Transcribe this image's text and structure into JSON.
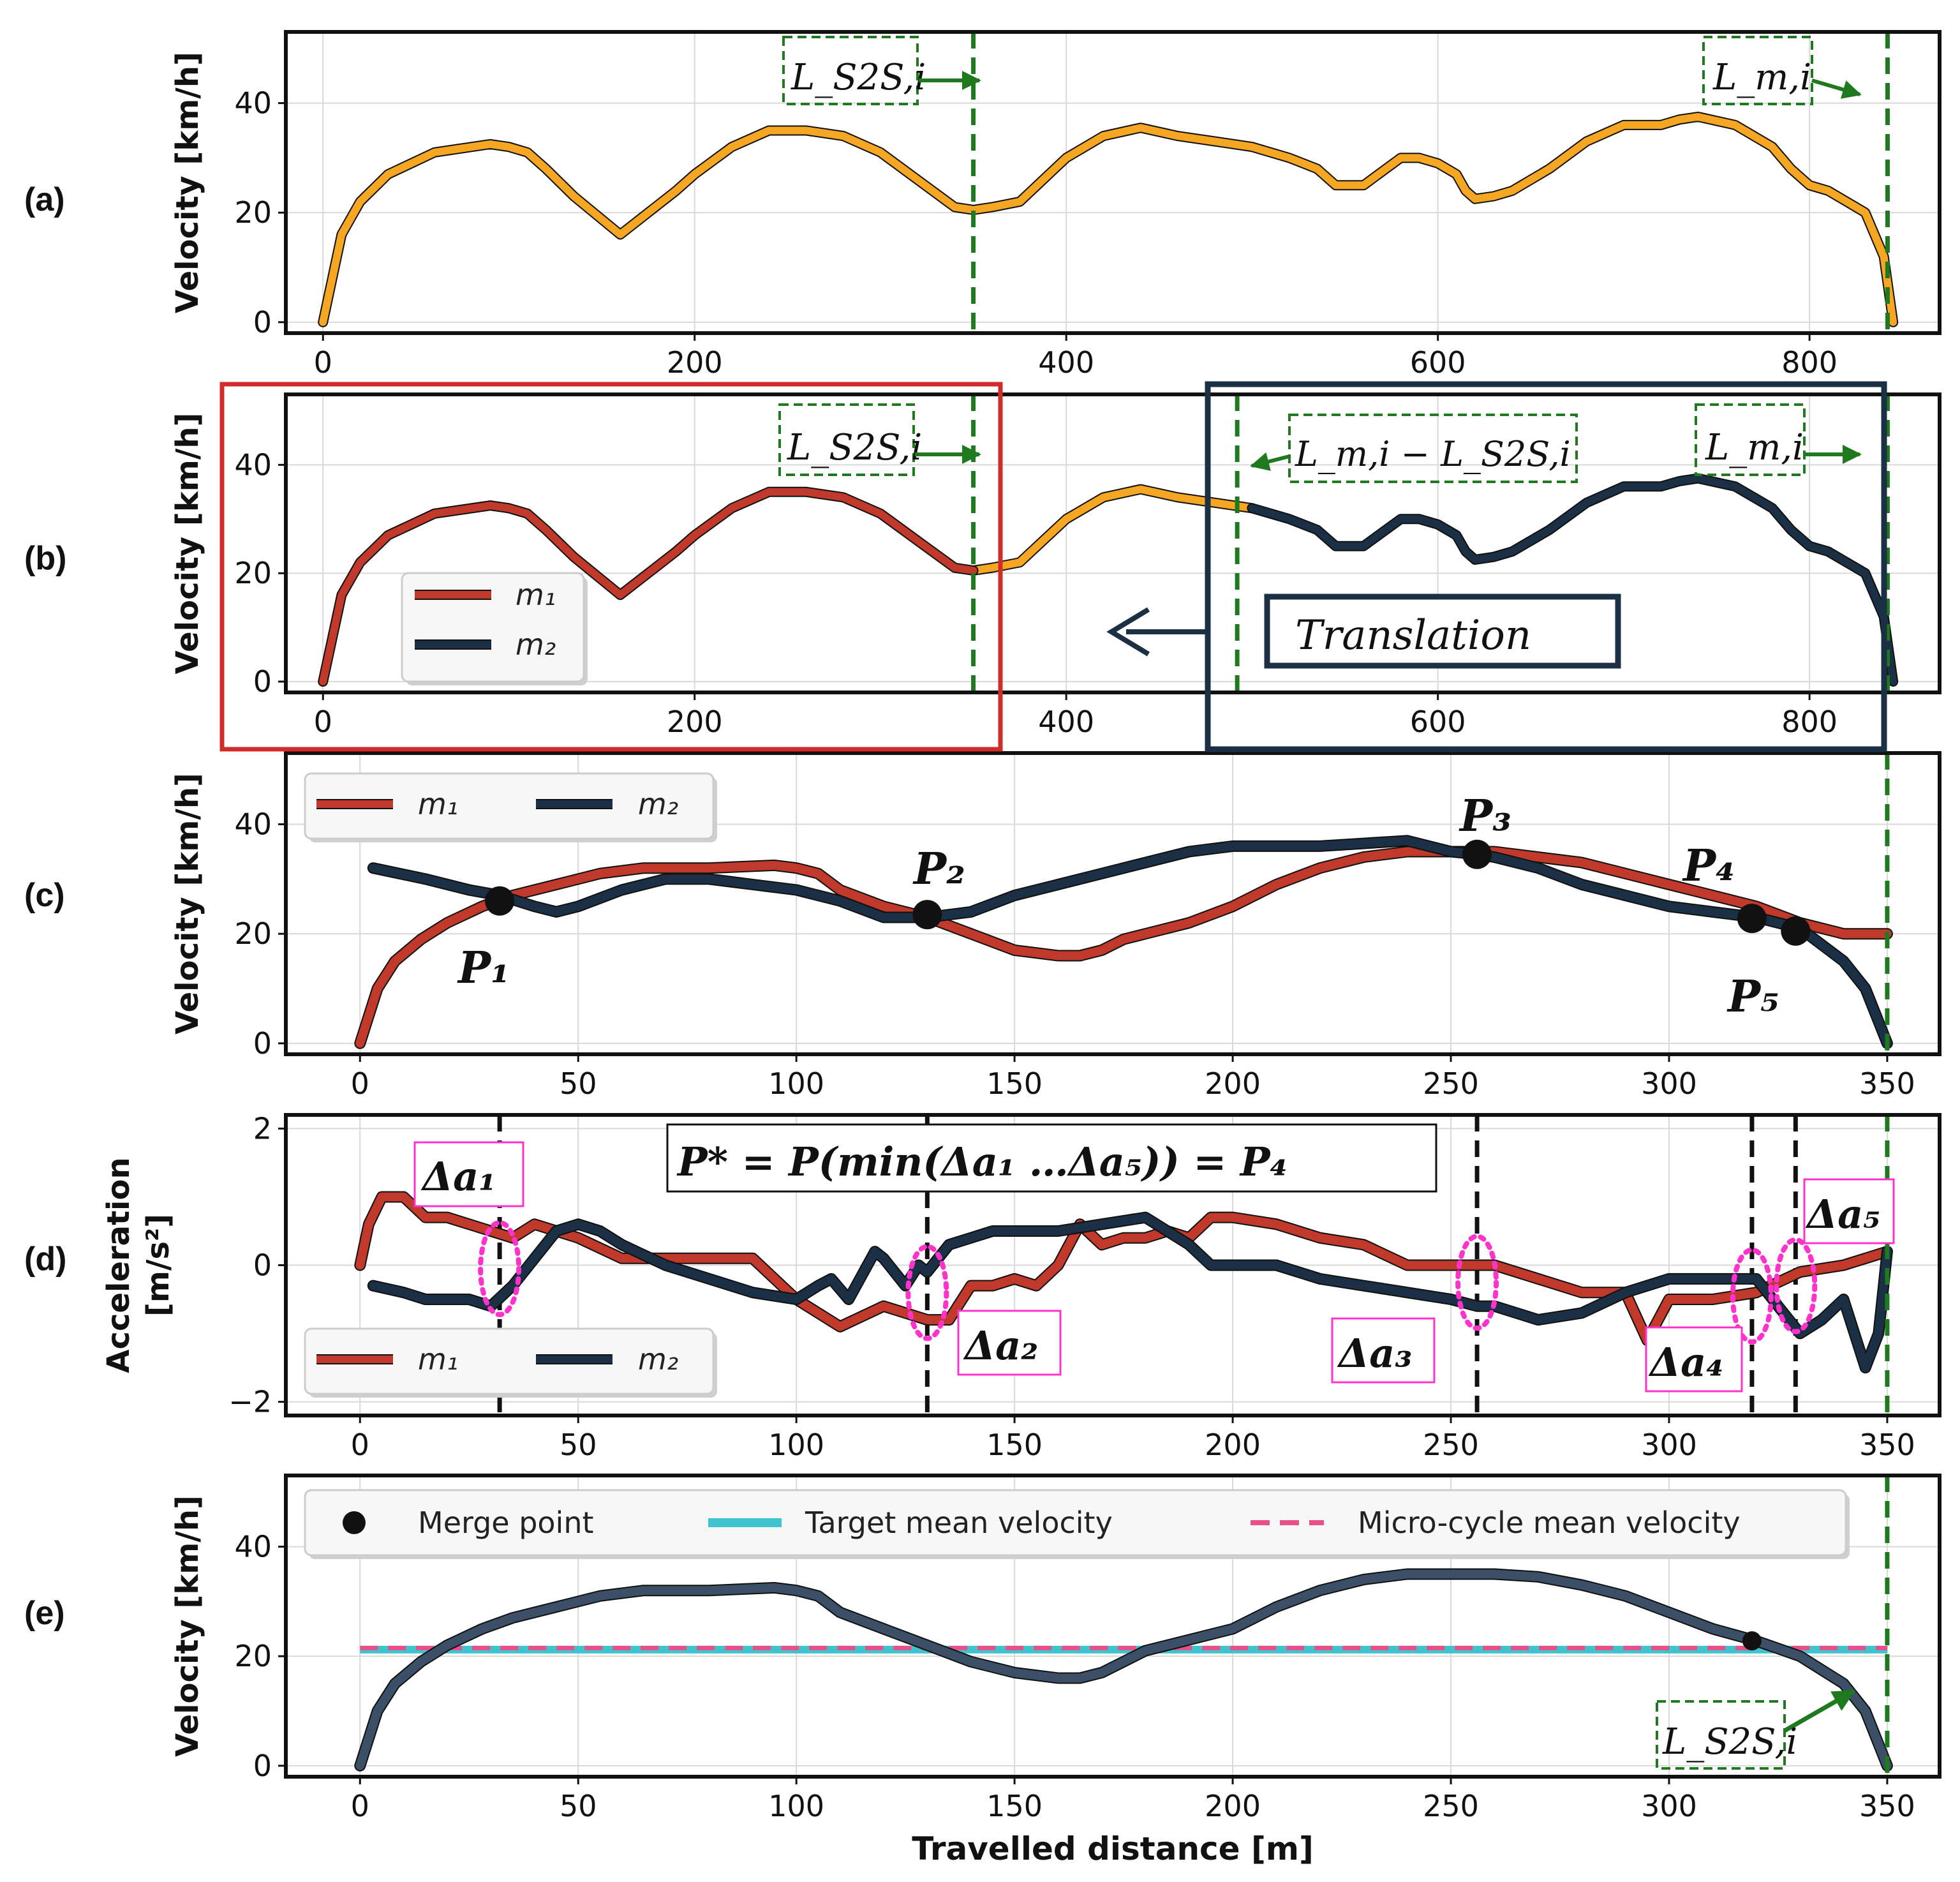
{
  "panel_labels": [
    "(a)",
    "(b)",
    "(c)",
    "(d)",
    "(e)"
  ],
  "colors": {
    "orange": "#f5a623",
    "red": "#c0392b",
    "navy": "#1b2f45",
    "green": "#1f7a1f",
    "cyan": "#3fc3cf",
    "pink": "#e8508a",
    "magenta": "#ff33cc",
    "panel_e_line": "#3b4f66"
  },
  "annotations": {
    "ls2s_i": "L_S2S,i",
    "lm_i": "L_m,i",
    "lm_minus_ls2s": "L_m,i − L_S2S,i",
    "translation": "Translation",
    "p_star": "P* = P(min(Δa₁ …Δa₅)) = P₄",
    "points": [
      "P₁",
      "P₂",
      "P₃",
      "P₄",
      "P₅"
    ],
    "deltas": [
      "Δa₁",
      "Δa₂",
      "Δa₃",
      "Δa₄",
      "Δa₅"
    ]
  },
  "legends": {
    "m1": "m₁",
    "m2": "m₂",
    "merge_point": "Merge point",
    "target_mean": "Target mean velocity",
    "micro_mean": "Micro-cycle mean velocity"
  },
  "chart_data": [
    {
      "id": "a",
      "type": "line",
      "ylabel": "Velocity [km/h]",
      "xlabel": "",
      "xlim": [
        -20,
        870
      ],
      "ylim": [
        -2,
        53
      ],
      "xticks": [
        0,
        200,
        400,
        600,
        800
      ],
      "yticks": [
        0,
        20,
        40
      ],
      "grid": true,
      "series": [
        {
          "name": "velocity",
          "x": [
            0,
            10,
            20,
            35,
            60,
            90,
            100,
            110,
            120,
            135,
            160,
            175,
            190,
            200,
            220,
            240,
            260,
            280,
            300,
            320,
            340,
            350,
            360,
            375,
            400,
            420,
            440,
            460,
            480,
            500,
            520,
            535,
            545,
            560,
            580,
            590,
            600,
            610,
            615,
            620,
            630,
            640,
            660,
            680,
            700,
            720,
            730,
            740,
            760,
            780,
            790,
            800,
            810,
            820,
            830,
            840,
            845
          ],
          "y": [
            0,
            16,
            22,
            27,
            31,
            32.5,
            32,
            31,
            28,
            23,
            16,
            20,
            24,
            27,
            32,
            35,
            35,
            34,
            31,
            26,
            21,
            20.5,
            21,
            22,
            30,
            34,
            35.5,
            34,
            33,
            32,
            30,
            28,
            25,
            25,
            30,
            30,
            29,
            27,
            24,
            22.5,
            23,
            24,
            28,
            33,
            36,
            36,
            37,
            37.5,
            36,
            32,
            28,
            25,
            24,
            22,
            20,
            12,
            0
          ]
        }
      ],
      "vlines": [
        350,
        842
      ]
    },
    {
      "id": "b",
      "type": "line",
      "ylabel": "Velocity [km/h]",
      "xlabel": "",
      "xlim": [
        -20,
        870
      ],
      "ylim": [
        -2,
        53
      ],
      "xticks": [
        0,
        200,
        400,
        600,
        800
      ],
      "yticks": [
        0,
        20,
        40
      ],
      "grid": true,
      "legend": "lower-left",
      "series": [
        {
          "name": "orange",
          "x": [
            350,
            360,
            375,
            400,
            420,
            440,
            460,
            480,
            500
          ],
          "y": [
            20.5,
            21,
            22,
            30,
            34,
            35.5,
            34,
            33,
            32
          ]
        },
        {
          "name": "m1",
          "x": [
            0,
            10,
            20,
            35,
            60,
            90,
            100,
            110,
            120,
            135,
            160,
            175,
            190,
            200,
            220,
            240,
            260,
            280,
            300,
            320,
            340,
            350
          ],
          "y": [
            0,
            16,
            22,
            27,
            31,
            32.5,
            32,
            31,
            28,
            23,
            16,
            20,
            24,
            27,
            32,
            35,
            35,
            34,
            31,
            26,
            21,
            20.5
          ]
        },
        {
          "name": "m2",
          "x": [
            500,
            520,
            535,
            545,
            560,
            580,
            590,
            600,
            610,
            615,
            620,
            630,
            640,
            660,
            680,
            700,
            720,
            730,
            740,
            760,
            780,
            790,
            800,
            810,
            820,
            830,
            840,
            845
          ],
          "y": [
            32,
            30,
            28,
            25,
            25,
            30,
            30,
            29,
            27,
            24,
            22.5,
            23,
            24,
            28,
            33,
            36,
            36,
            37,
            37.5,
            36,
            32,
            28,
            25,
            24,
            22,
            20,
            12,
            0
          ]
        }
      ],
      "vlines": [
        350,
        492,
        842
      ]
    },
    {
      "id": "c",
      "type": "line",
      "ylabel": "Velocity [km/h]",
      "xlabel": "",
      "xlim": [
        -17,
        362
      ],
      "ylim": [
        -2,
        53
      ],
      "xticks": [
        0,
        50,
        100,
        150,
        200,
        250,
        300,
        350
      ],
      "yticks": [
        0,
        20,
        40
      ],
      "grid": true,
      "legend": "top-left",
      "series": [
        {
          "name": "m1",
          "x": [
            0,
            4,
            8,
            14,
            20,
            28,
            35,
            45,
            55,
            65,
            80,
            95,
            100,
            105,
            110,
            120,
            130,
            140,
            150,
            160,
            165,
            170,
            175,
            180,
            190,
            200,
            210,
            220,
            230,
            240,
            250,
            260,
            270,
            280,
            290,
            300,
            310,
            320,
            330,
            340,
            350
          ],
          "y": [
            0,
            10,
            15,
            19,
            22,
            25,
            27,
            29,
            31,
            32,
            32,
            32.5,
            32,
            31,
            28,
            25,
            23,
            20,
            17,
            16,
            16,
            17,
            19,
            20,
            22,
            25,
            29,
            32,
            34,
            35,
            35,
            35,
            34,
            33,
            31,
            29,
            27,
            25,
            22,
            20,
            20
          ]
        },
        {
          "name": "m2",
          "x": [
            3,
            15,
            25,
            32,
            40,
            45,
            50,
            60,
            70,
            80,
            90,
            100,
            110,
            120,
            130,
            140,
            150,
            160,
            170,
            180,
            190,
            200,
            210,
            220,
            230,
            240,
            250,
            256,
            260,
            270,
            280,
            290,
            300,
            310,
            320,
            330,
            340,
            345,
            350
          ],
          "y": [
            32,
            30,
            28,
            27,
            25,
            24,
            25,
            28,
            30,
            30,
            29,
            28,
            26,
            23,
            23,
            24,
            27,
            29,
            31,
            33,
            35,
            36,
            36,
            36,
            36.5,
            37,
            35,
            34.5,
            34,
            32,
            29,
            27,
            25,
            24,
            23,
            21,
            15,
            10,
            0
          ]
        }
      ],
      "markers": [
        {
          "x": 32,
          "y": 26
        },
        {
          "x": 130,
          "y": 23.5
        },
        {
          "x": 256,
          "y": 34.5
        },
        {
          "x": 319,
          "y": 22.8
        },
        {
          "x": 329,
          "y": 20.5
        }
      ],
      "vlines": [
        350
      ]
    },
    {
      "id": "d",
      "type": "line",
      "ylabel": "Acceleration [m/s²]",
      "xlabel": "",
      "xlim": [
        -17,
        362
      ],
      "ylim": [
        -2.2,
        2.2
      ],
      "xticks": [
        0,
        50,
        100,
        150,
        200,
        250,
        300,
        350
      ],
      "yticks": [
        -2,
        0,
        2
      ],
      "grid": true,
      "legend": "lower-left",
      "series": [
        {
          "name": "m1",
          "x": [
            0,
            2,
            5,
            10,
            15,
            20,
            25,
            30,
            35,
            40,
            45,
            50,
            60,
            70,
            80,
            90,
            100,
            110,
            120,
            130,
            135,
            140,
            145,
            150,
            155,
            160,
            165,
            170,
            175,
            180,
            185,
            190,
            195,
            200,
            210,
            220,
            230,
            240,
            250,
            255,
            260,
            270,
            280,
            290,
            295,
            300,
            310,
            320,
            330,
            340,
            350
          ],
          "y": [
            0,
            0.6,
            1.0,
            1.0,
            0.7,
            0.7,
            0.6,
            0.5,
            0.4,
            0.6,
            0.5,
            0.4,
            0.1,
            0.1,
            0.1,
            0.1,
            -0.5,
            -0.9,
            -0.6,
            -0.8,
            -0.8,
            -0.3,
            -0.3,
            -0.2,
            -0.3,
            0,
            0.6,
            0.3,
            0.4,
            0.4,
            0.5,
            0.4,
            0.7,
            0.7,
            0.6,
            0.4,
            0.3,
            0,
            0,
            0,
            0,
            -0.2,
            -0.4,
            -0.4,
            -1.1,
            -0.5,
            -0.5,
            -0.4,
            -0.1,
            0,
            0.2
          ]
        },
        {
          "name": "m2",
          "x": [
            3,
            10,
            15,
            20,
            25,
            30,
            35,
            40,
            45,
            50,
            55,
            60,
            70,
            80,
            90,
            100,
            105,
            108,
            112,
            118,
            120,
            125,
            128,
            130,
            135,
            140,
            145,
            150,
            160,
            170,
            180,
            185,
            190,
            195,
            200,
            210,
            220,
            230,
            240,
            250,
            256,
            260,
            270,
            280,
            290,
            300,
            310,
            320,
            325,
            330,
            335,
            340,
            345,
            348,
            350
          ],
          "y": [
            -0.3,
            -0.4,
            -0.5,
            -0.5,
            -0.5,
            -0.6,
            -0.3,
            0.1,
            0.5,
            0.6,
            0.5,
            0.3,
            0,
            -0.2,
            -0.4,
            -0.5,
            -0.3,
            -0.2,
            -0.5,
            0.2,
            0.1,
            -0.3,
            0,
            -0.1,
            0.3,
            0.4,
            0.5,
            0.5,
            0.5,
            0.6,
            0.7,
            0.5,
            0.3,
            0,
            0,
            0,
            -0.2,
            -0.3,
            -0.4,
            -0.5,
            -0.6,
            -0.6,
            -0.8,
            -0.7,
            -0.4,
            -0.2,
            -0.2,
            -0.2,
            -0.6,
            -1.0,
            -0.8,
            -0.5,
            -1.5,
            -1.0,
            0.2
          ]
        }
      ],
      "vlines": [
        32,
        130,
        256,
        319,
        329
      ],
      "green_vline": 350
    },
    {
      "id": "e",
      "type": "line",
      "ylabel": "Velocity [km/h]",
      "xlabel": "Travelled distance [m]",
      "xlim": [
        -17,
        362
      ],
      "ylim": [
        -2,
        53
      ],
      "xticks": [
        0,
        50,
        100,
        150,
        200,
        250,
        300,
        350
      ],
      "yticks": [
        0,
        20,
        40
      ],
      "grid": true,
      "legend": "top",
      "series": [
        {
          "name": "velocity",
          "x": [
            0,
            4,
            8,
            14,
            20,
            28,
            35,
            45,
            55,
            65,
            80,
            95,
            100,
            105,
            110,
            120,
            130,
            140,
            150,
            160,
            165,
            170,
            175,
            180,
            190,
            200,
            210,
            220,
            230,
            240,
            250,
            260,
            270,
            280,
            290,
            300,
            310,
            320,
            330,
            340,
            345,
            350
          ],
          "y": [
            0,
            10,
            15,
            19,
            22,
            25,
            27,
            29,
            31,
            32,
            32,
            32.5,
            32,
            31,
            28,
            25,
            22,
            19,
            17,
            16,
            16,
            17,
            19,
            21,
            23,
            25,
            29,
            32,
            34,
            35,
            35,
            35,
            34.5,
            33,
            31,
            28,
            25,
            22.8,
            20,
            15,
            10,
            0
          ]
        },
        {
          "name": "target_mean",
          "value": 21.2
        },
        {
          "name": "micro_mean",
          "value": 21.5
        }
      ],
      "markers": [
        {
          "x": 319,
          "y": 22.8
        }
      ],
      "vlines": [
        350
      ]
    }
  ]
}
